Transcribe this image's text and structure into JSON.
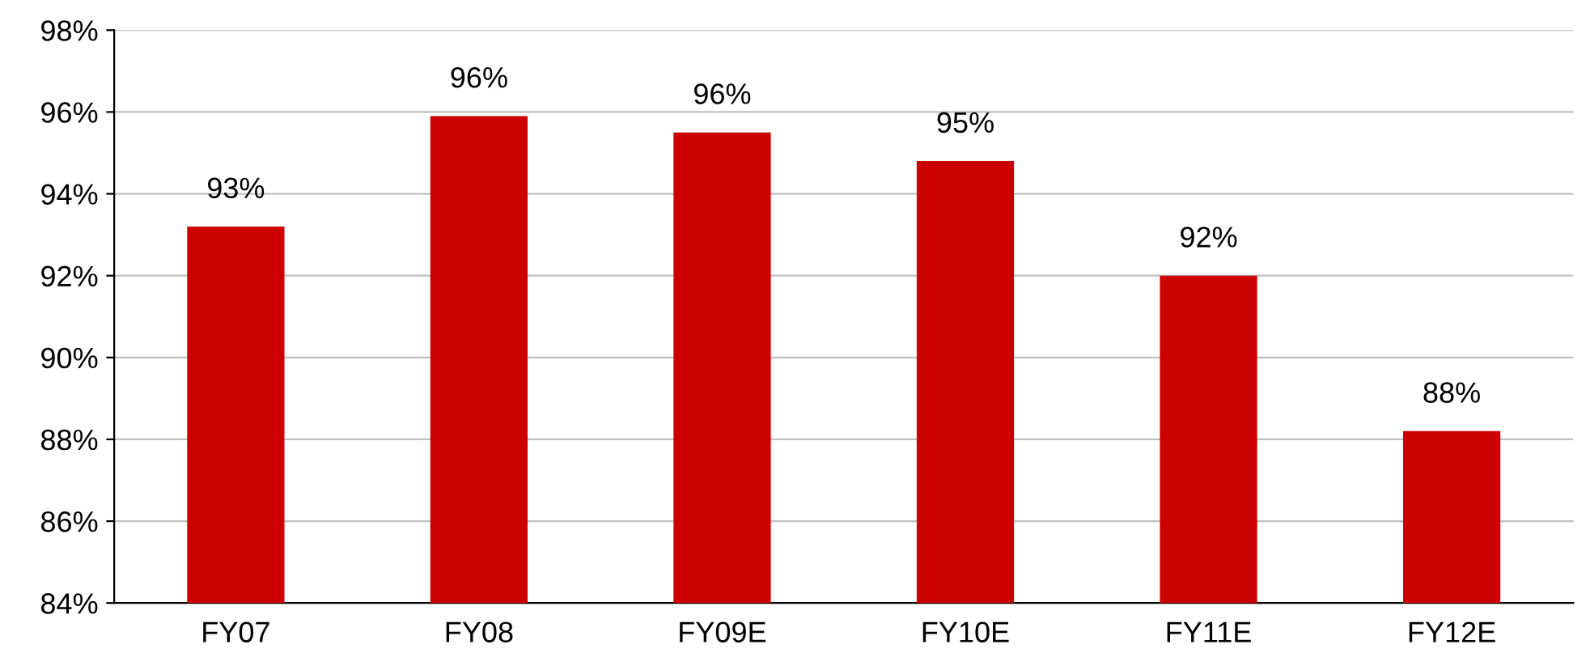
{
  "chart_data": {
    "type": "bar",
    "categories": [
      "FY07",
      "FY08",
      "FY09E",
      "FY10E",
      "FY11E",
      "FY12E"
    ],
    "values": [
      93.2,
      95.9,
      95.5,
      94.8,
      92.0,
      88.2
    ],
    "value_labels": [
      "93%",
      "96%",
      "96%",
      "95%",
      "92%",
      "88%"
    ],
    "color": "#cc0000",
    "ylim": [
      84,
      98
    ],
    "yticks": [
      {
        "value": 84,
        "label": "84%"
      },
      {
        "value": 86,
        "label": "86%"
      },
      {
        "value": 88,
        "label": "88%"
      },
      {
        "value": 90,
        "label": "90%"
      },
      {
        "value": 92,
        "label": "92%"
      },
      {
        "value": 94,
        "label": "94%"
      },
      {
        "value": 96,
        "label": "96%"
      },
      {
        "value": 98,
        "label": "98%"
      }
    ],
    "grid": "y",
    "legend": false
  }
}
